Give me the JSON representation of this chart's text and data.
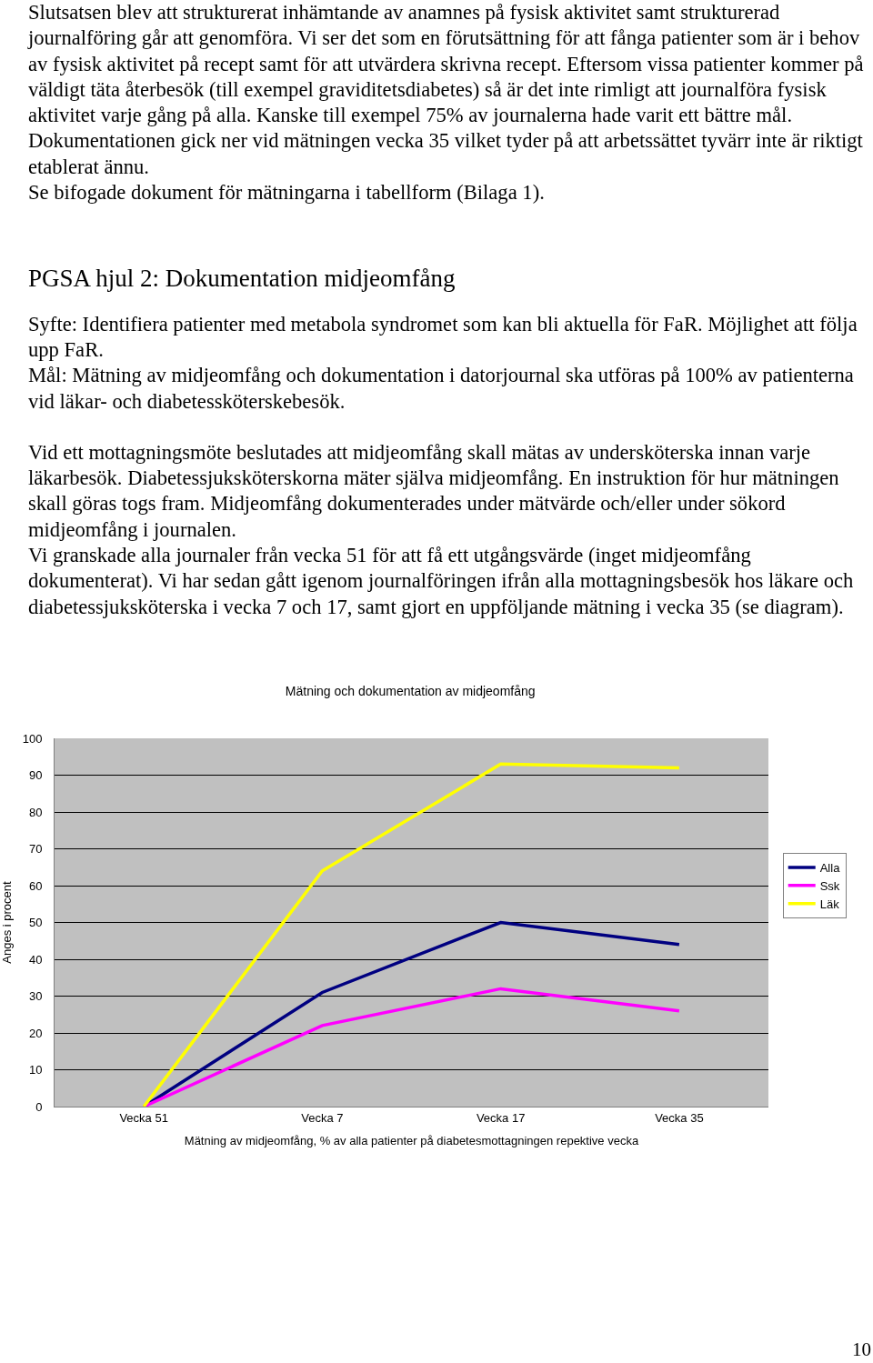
{
  "chart_data": {
    "type": "line",
    "title": "Mätning och dokumentation av midjeomfång",
    "xlabel": "Mätning av midjeomfång, % av alla patienter på diabetesmottagningen repektive vecka",
    "ylabel": "Anges i procent",
    "categories": [
      "Vecka 51",
      "Vecka 7",
      "Vecka 17",
      "Vecka 35"
    ],
    "series": [
      {
        "name": "Alla",
        "color": "#000080",
        "values": [
          0,
          31,
          50,
          44
        ]
      },
      {
        "name": "Ssk",
        "color": "#ff00ff",
        "values": [
          0,
          22,
          32,
          26
        ]
      },
      {
        "name": "Läk",
        "color": "#ffff00",
        "values": [
          0,
          64,
          93,
          92
        ]
      }
    ],
    "ylim": [
      0,
      100
    ],
    "yticks": [
      0,
      10,
      20,
      30,
      40,
      50,
      60,
      70,
      80,
      90,
      100
    ],
    "grid": "y",
    "legend": "right",
    "marker": "none",
    "line_style": "solid",
    "annotations": [
      "Slutsatsen blev att strukturerat inhämtande av anamnes på fysisk aktivitet samt strukturerad journalföring går att genomföra. Vi ser det som en förutsättning för att fånga patienter som är i behov av fysisk aktivitet på recept samt för att utvärdera skrivna recept. Eftersom vissa patienter kommer på väldigt täta återbesök (till exempel graviditetsdiabetes) så är det inte rimligt att journalföra fysisk aktivitet varje gång på alla. Kanske till exempel  75% av journalerna hade varit ett bättre mål.",
      "Dokumentationen gick ner vid mätningen vecka 35 vilket tyder på att arbetssättet tyvärr inte är riktigt etablerat ännu.",
      "Se bifogade dokument för mätningarna i tabellform (Bilaga 1).",
      "PGSA hjul 2: Dokumentation midjeomfång",
      "Syfte: Identifiera patienter med metabola syndromet som kan bli aktuella för FaR. Möjlighet att följa upp FaR.",
      "Mål: Mätning av midjeomfång och dokumentation i datorjournal ska utföras på 100% av patienterna vid läkar- och diabetessköterskebesök.",
      "Vid ett mottagningsmöte beslutades att midjeomfång skall mätas av undersköterska innan varje läkarbesök. Diabetessjuksköterskorna mäter själva midjeomfång. En instruktion för hur mätningen skall göras togs fram. Midjeomfång dokumenterades under mätvärde och/eller under sökord midjeomfång i journalen.",
      "Vi granskade alla journaler från vecka 51 för att få ett utgångsvärde (inget midjeomfång dokumenterat). Vi har sedan gått igenom journalföringen ifrån alla mottagningsbesök hos läkare och diabetessjuksköterska i vecka 7 och 17, samt gjort en uppföljande mätning i vecka 35 (se diagram).",
      "10"
    ]
  }
}
